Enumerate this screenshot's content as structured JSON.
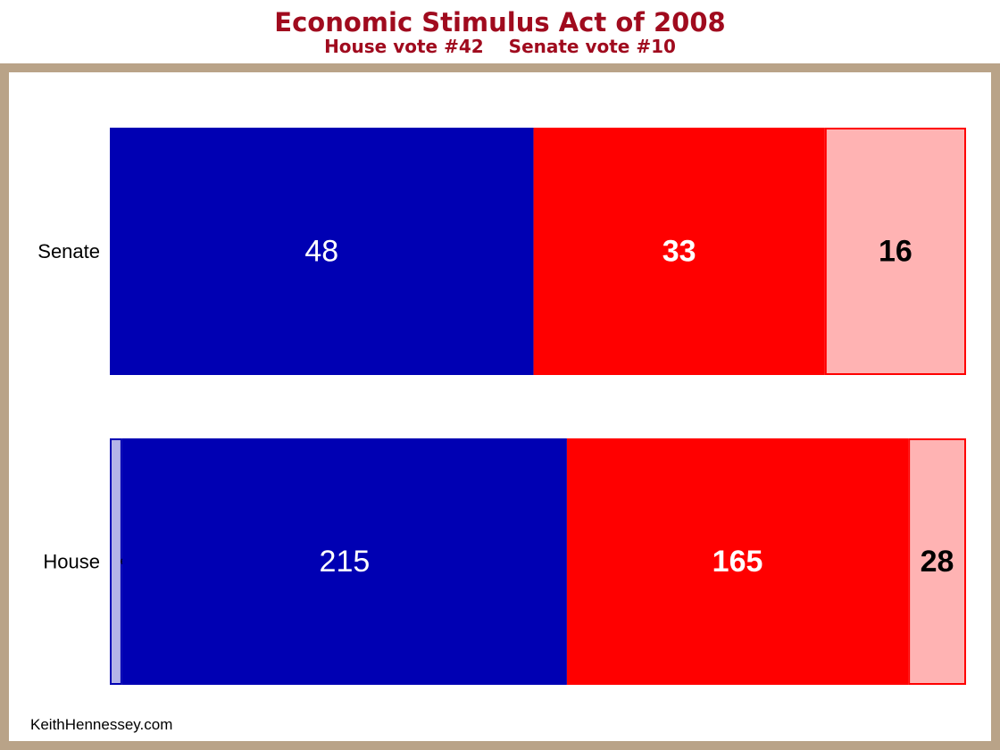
{
  "colors": {
    "title": "#a00b1e",
    "frame": "#b9a388",
    "dem": "#0000b3",
    "rep": "#ff0000",
    "light_rep": "#ffb3b3",
    "light_dem": "#b3b3e8"
  },
  "chart_data": {
    "type": "bar",
    "orientation": "horizontal",
    "stacked": true,
    "title": "Economic Stimulus Act of 2008",
    "subtitle_left": "House vote #42",
    "subtitle_right": "Senate vote #10",
    "categories": [
      "Senate",
      "House"
    ],
    "series": [
      {
        "key": "light_dem",
        "values": [
          0,
          6
        ]
      },
      {
        "key": "dem",
        "values": [
          48,
          215
        ]
      },
      {
        "key": "rep",
        "values": [
          33,
          165
        ]
      },
      {
        "key": "light_rep",
        "values": [
          16,
          28
        ]
      }
    ],
    "grid": false,
    "legend": "none"
  },
  "footer": {
    "credit": "KeithHennessey.com"
  }
}
